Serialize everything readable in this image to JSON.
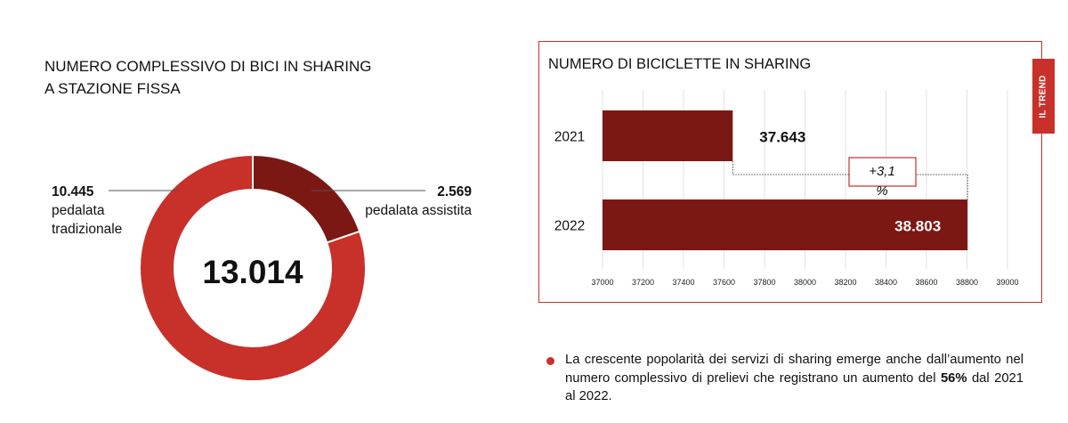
{
  "colors": {
    "traditional": "#c8302a",
    "assisted": "#7b1813",
    "bar": "#7b1813",
    "accent": "#c8302a",
    "grid": "#e2e2e2"
  },
  "left": {
    "title_line1": "NUMERO COMPLESSIVO DI BICI IN SHARING",
    "title_line2": "A STAZIONE FISSA",
    "total": "13.014",
    "traditional": {
      "value_text": "10.445",
      "name_line1": "pedalata",
      "name_line2": "tradizionale"
    },
    "assisted": {
      "value_text": "2.569",
      "name": "pedalata assistita"
    }
  },
  "right": {
    "title": "NUMERO DI BICICLETTE IN SHARING",
    "trend_label": "IL TREND",
    "growth_label": "+3,1",
    "growth_unit": "%"
  },
  "note": {
    "text_before": "La crescente popolarità dei servizi di sharing emerge anche dall’aumento nel numero complessivo di prelievi che registrano un aumento del ",
    "highlight": "56%",
    "text_after": " dal 2021 al 2022."
  },
  "chart_data": [
    {
      "type": "pie",
      "title": "NUMERO COMPLESSIVO DI BICI IN SHARING A STAZIONE FISSA",
      "total": 13014,
      "slices": [
        {
          "name": "pedalata assistita",
          "value": 2569
        },
        {
          "name": "pedalata tradizionale",
          "value": 10445
        }
      ]
    },
    {
      "type": "bar",
      "orientation": "horizontal",
      "title": "NUMERO DI BICICLETTE IN SHARING",
      "categories": [
        "2021",
        "2022"
      ],
      "values": [
        37643,
        38803
      ],
      "data_labels": [
        "37.643",
        "38.803"
      ],
      "xlim": [
        37000,
        39000
      ],
      "ticks": [
        37000,
        37200,
        37400,
        37600,
        37800,
        38000,
        38200,
        38400,
        38600,
        38800,
        39000
      ],
      "grid": true,
      "annotation": "+3,1 %"
    }
  ]
}
